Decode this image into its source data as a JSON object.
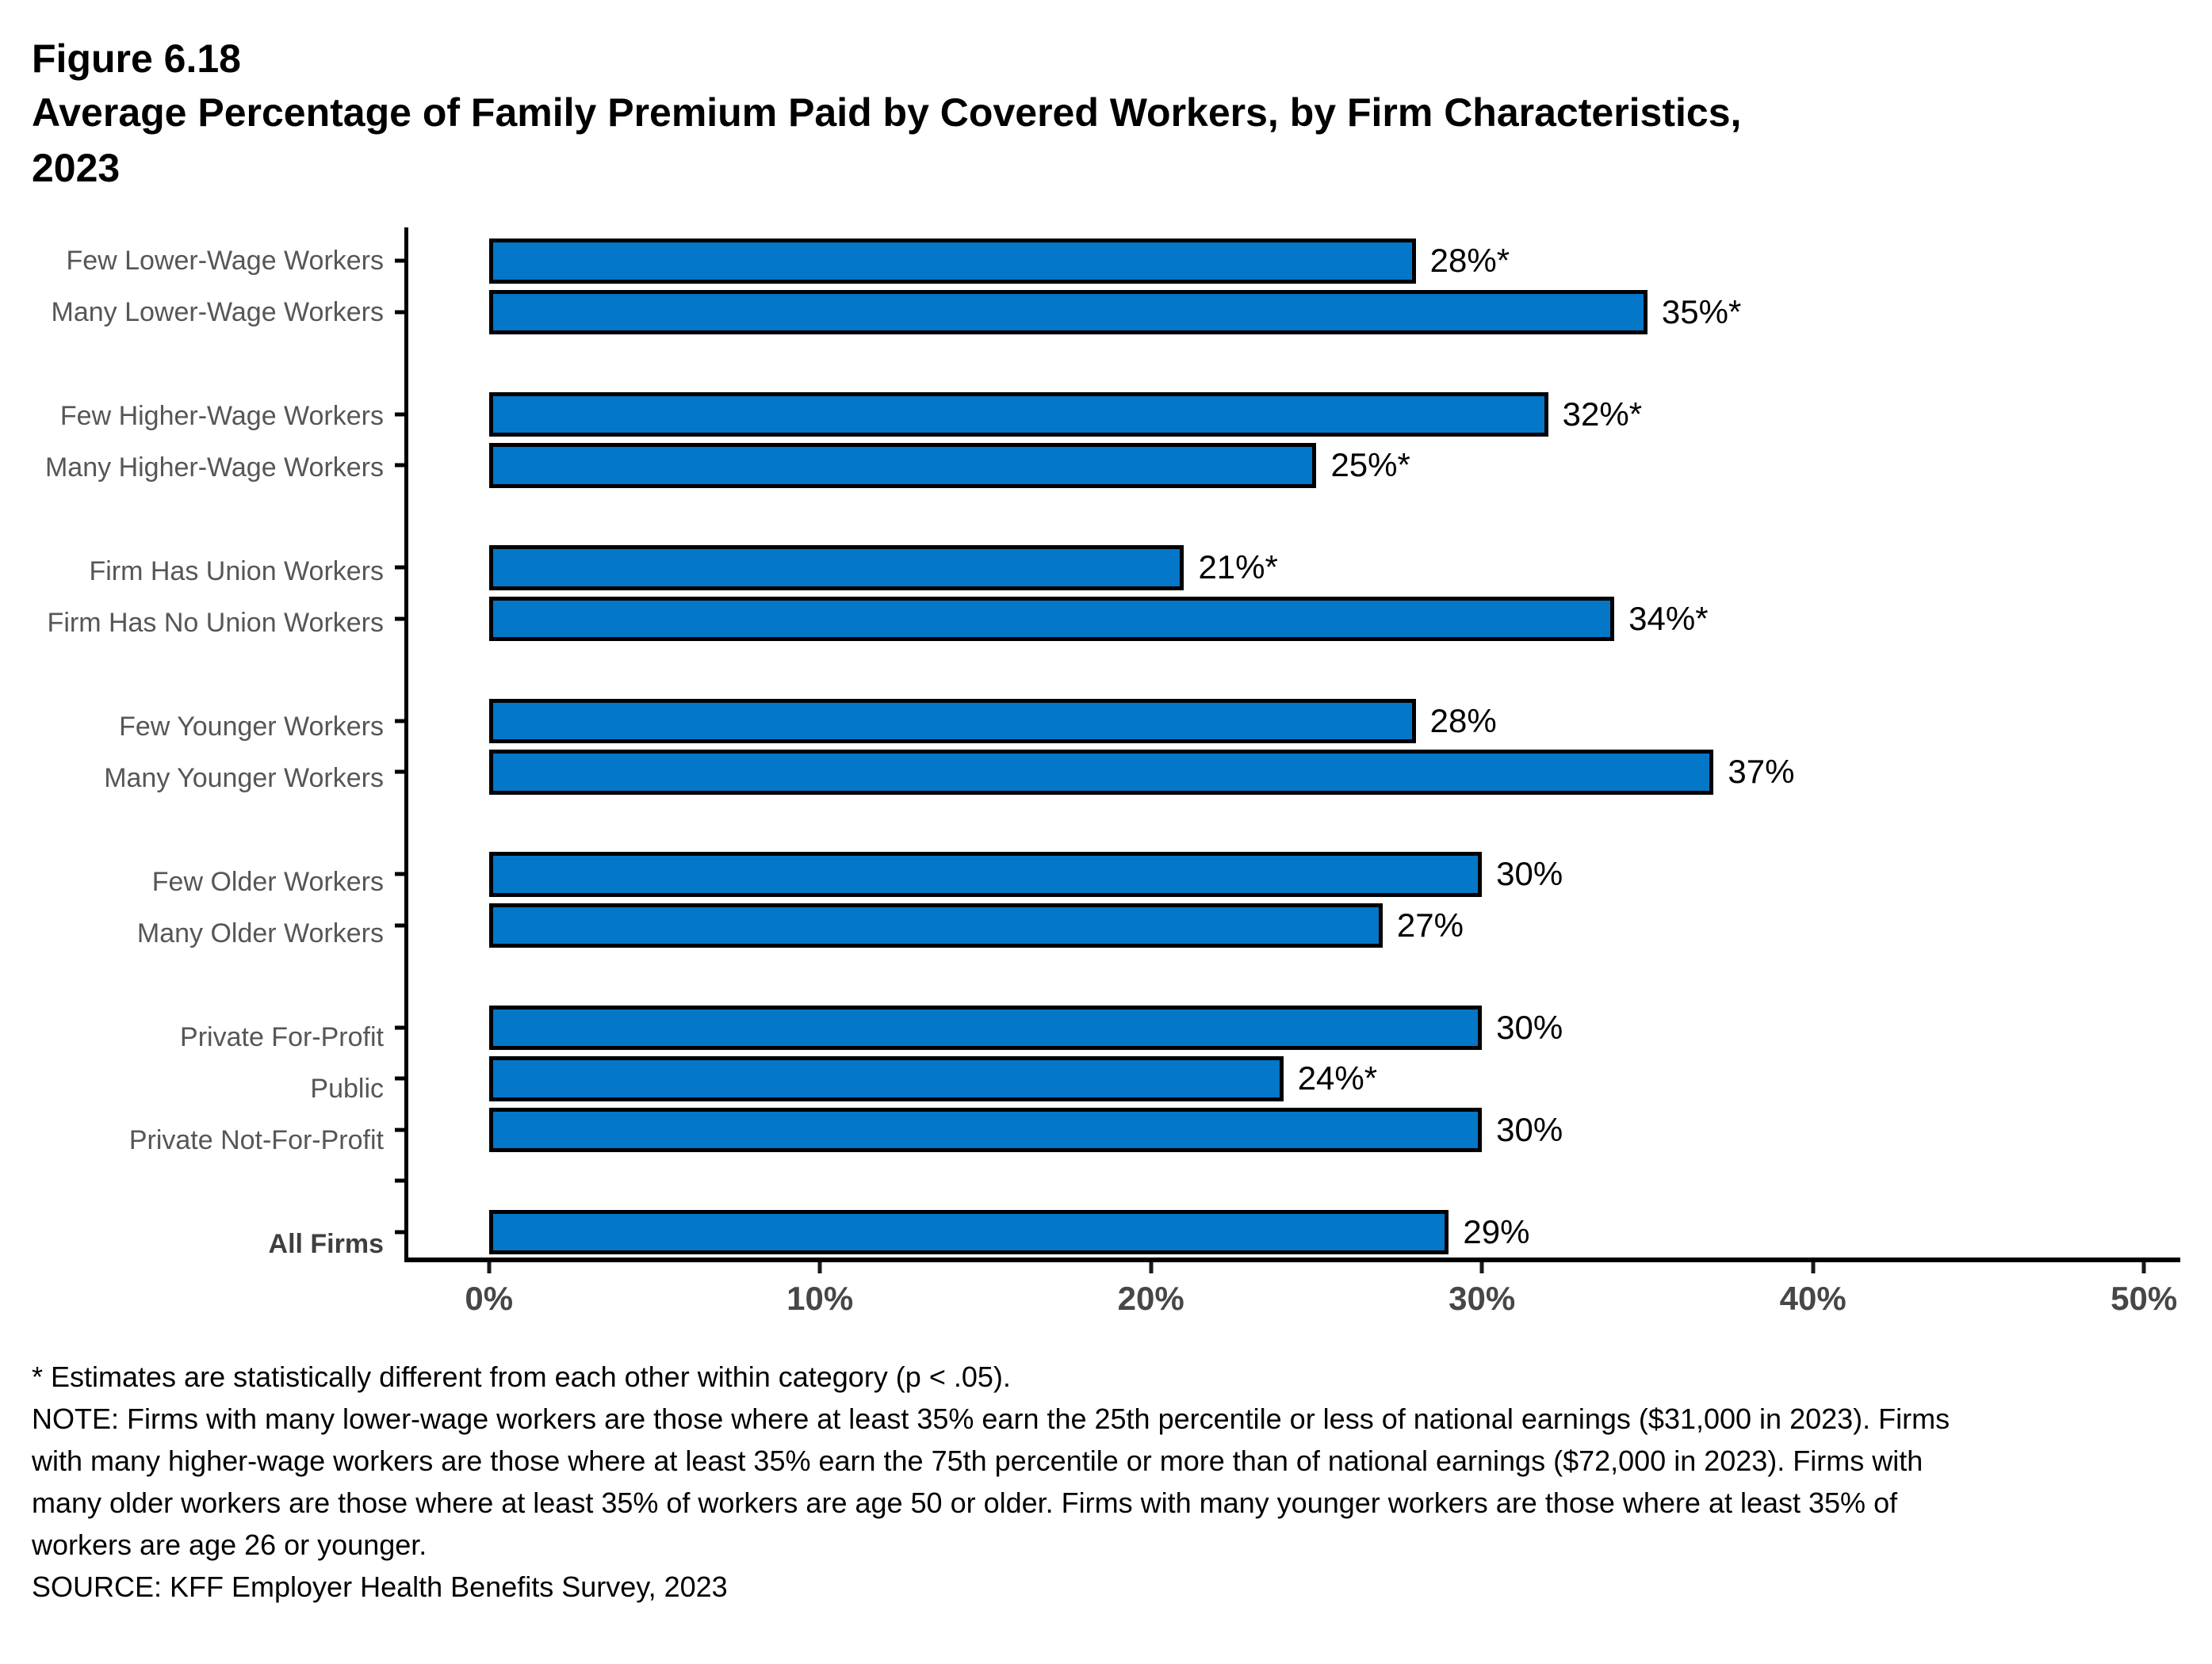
{
  "header": {
    "figure_label": "Figure 6.18",
    "title_line1": "Average Percentage of Family Premium Paid by Covered Workers, by Firm Characteristics,",
    "title_line2": "2023"
  },
  "chart_data": {
    "type": "bar",
    "orientation": "horizontal",
    "title": "Average Percentage of Family Premium Paid by Covered Workers, by Firm Characteristics, 2023",
    "unit": "%",
    "x_axis": {
      "min": 0,
      "max": 50,
      "tick_values": [
        0,
        10,
        20,
        30,
        40,
        50
      ],
      "tick_labels": [
        "0%",
        "10%",
        "20%",
        "30%",
        "40%",
        "50%"
      ]
    },
    "bar_color": "#0477C8",
    "bar_border_color": "#000000",
    "rows": [
      {
        "label": "Few Lower-Wage Workers",
        "value": 28,
        "display": "28%*",
        "significant": true,
        "bold": false
      },
      {
        "label": "Many Lower-Wage Workers",
        "value": 35,
        "display": "35%*",
        "significant": true,
        "bold": false
      },
      {
        "spacer": true,
        "tick": false
      },
      {
        "label": "Few Higher-Wage Workers",
        "value": 32,
        "display": "32%*",
        "significant": true,
        "bold": false
      },
      {
        "label": "Many Higher-Wage Workers",
        "value": 25,
        "display": "25%*",
        "significant": true,
        "bold": false
      },
      {
        "spacer": true,
        "tick": false
      },
      {
        "label": "Firm Has Union Workers",
        "value": 21,
        "display": "21%*",
        "significant": true,
        "bold": false
      },
      {
        "label": "Firm Has No Union Workers",
        "value": 34,
        "display": "34%*",
        "significant": true,
        "bold": false
      },
      {
        "spacer": true,
        "tick": false
      },
      {
        "label": "Few Younger Workers",
        "value": 28,
        "display": "28%",
        "significant": false,
        "bold": false
      },
      {
        "label": "Many Younger Workers",
        "value": 37,
        "display": "37%",
        "significant": false,
        "bold": false
      },
      {
        "spacer": true,
        "tick": false
      },
      {
        "label": "Few Older Workers",
        "value": 30,
        "display": "30%",
        "significant": false,
        "bold": false
      },
      {
        "label": "Many Older Workers",
        "value": 27,
        "display": "27%",
        "significant": false,
        "bold": false
      },
      {
        "spacer": true,
        "tick": false
      },
      {
        "label": "Private For-Profit",
        "value": 30,
        "display": "30%",
        "significant": false,
        "bold": false
      },
      {
        "label": "Public",
        "value": 24,
        "display": "24%*",
        "significant": true,
        "bold": false
      },
      {
        "label": "Private Not-For-Profit",
        "value": 30,
        "display": "30%",
        "significant": false,
        "bold": false
      },
      {
        "spacer": true,
        "tick": true
      },
      {
        "label": "All Firms",
        "value": 29,
        "display": "29%",
        "significant": false,
        "bold": true
      }
    ]
  },
  "footnotes": {
    "asterisk_note": "* Estimates are statistically different from each other within category (p < .05).",
    "note_lines": [
      "NOTE: Firms with many lower-wage workers are those where at least 35% earn the 25th percentile or less of national earnings ($31,000 in 2023). Firms",
      "with many higher-wage workers are those where at least 35% earn the 75th percentile or more than of national earnings ($72,000 in 2023). Firms with",
      "many older workers are those where at least 35% of workers are age 50 or older. Firms with many younger workers are those where at least 35% of",
      "workers are age 26 or younger."
    ],
    "source": "SOURCE: KFF Employer Health Benefits Survey, 2023"
  }
}
